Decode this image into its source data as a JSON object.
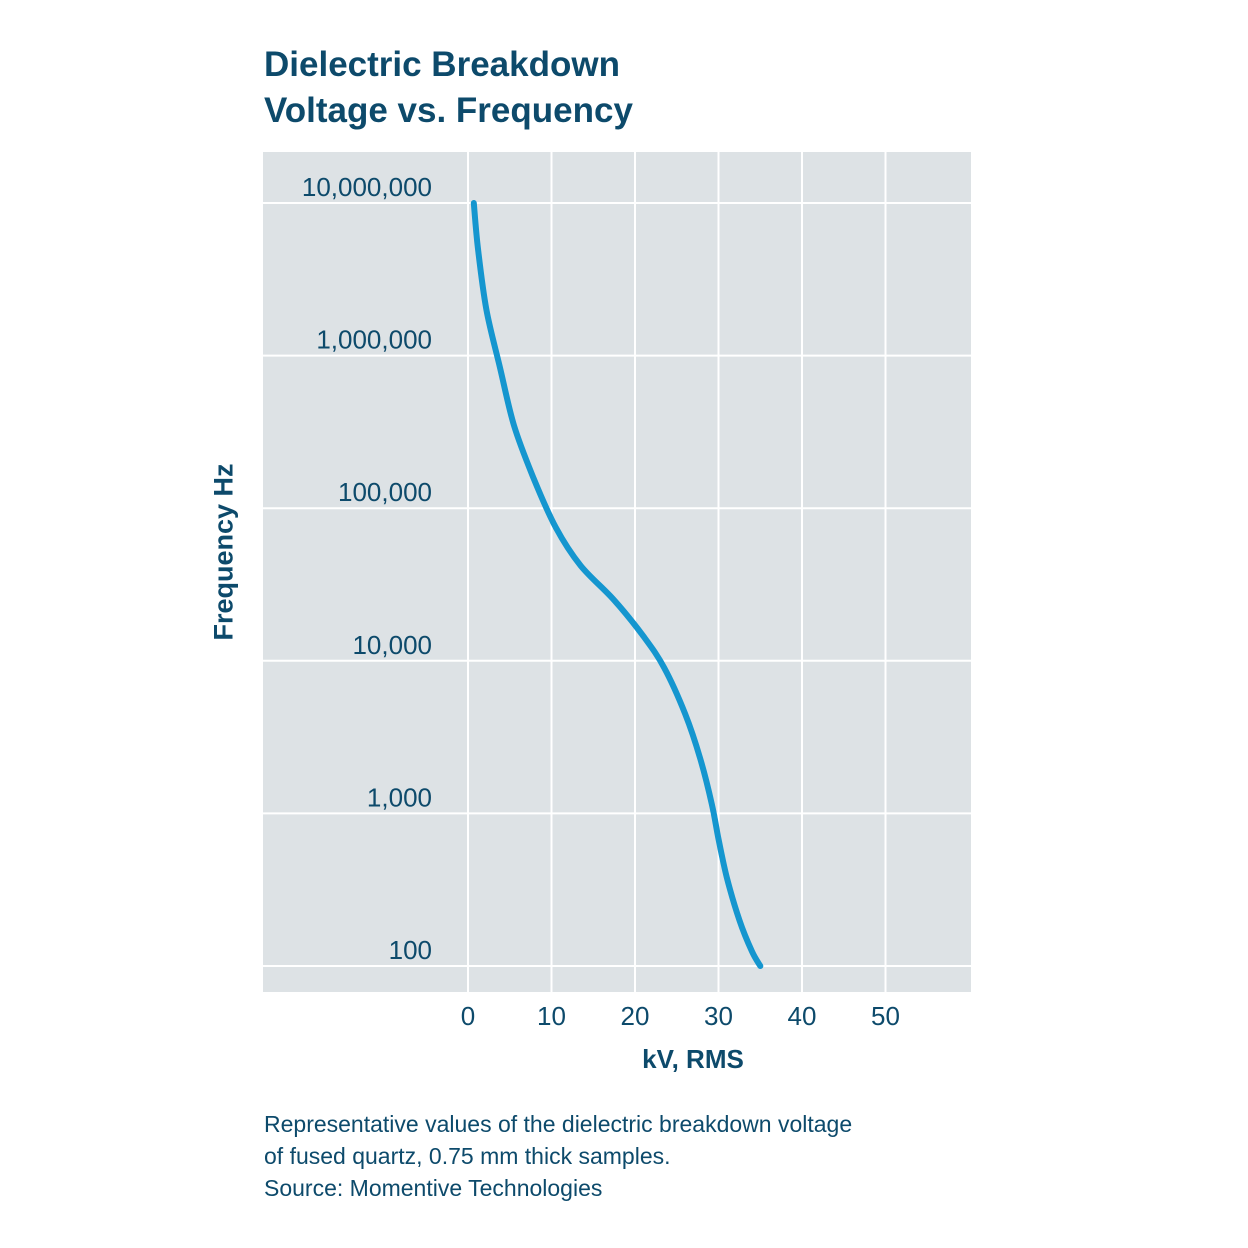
{
  "chart_data": {
    "type": "line",
    "title_lines": [
      "Dielectric Breakdown",
      "Voltage vs. Frequency"
    ],
    "xlabel": "kV, RMS",
    "ylabel": "Frequency Hz",
    "x_ticks": [
      0,
      10,
      20,
      30,
      40,
      50
    ],
    "x_tick_labels": [
      "0",
      "10",
      "20",
      "30",
      "40",
      "50"
    ],
    "y_ticks": [
      100,
      1000,
      10000,
      100000,
      1000000,
      10000000
    ],
    "y_tick_labels": [
      "100",
      "1,000",
      "10,000",
      "100,000",
      "1,000,000",
      "10,000,000"
    ],
    "y_scale": "log",
    "xlim": [
      -25,
      60
    ],
    "ylim": [
      60,
      20000000
    ],
    "grid": true,
    "series": [
      {
        "color": "#1596cf",
        "x": [
          0.7,
          1.2,
          2.2,
          3.8,
          5.5,
          7.8,
          10.5,
          13.5,
          17.5,
          21.0,
          23.5,
          26.0,
          27.8,
          29.2,
          30.0,
          31.0,
          32.5,
          34.0,
          35.0
        ],
        "y": [
          10000000,
          5000000,
          2000000,
          850000,
          350000,
          160000,
          75000,
          42000,
          25000,
          14500,
          9000,
          4500,
          2300,
          1150,
          680,
          380,
          200,
          125,
          100
        ]
      }
    ]
  },
  "caption_lines": [
    "Representative values of the dielectric breakdown voltage",
    "of fused quartz, 0.75 mm thick samples.",
    "Source: Momentive Technologies"
  ]
}
